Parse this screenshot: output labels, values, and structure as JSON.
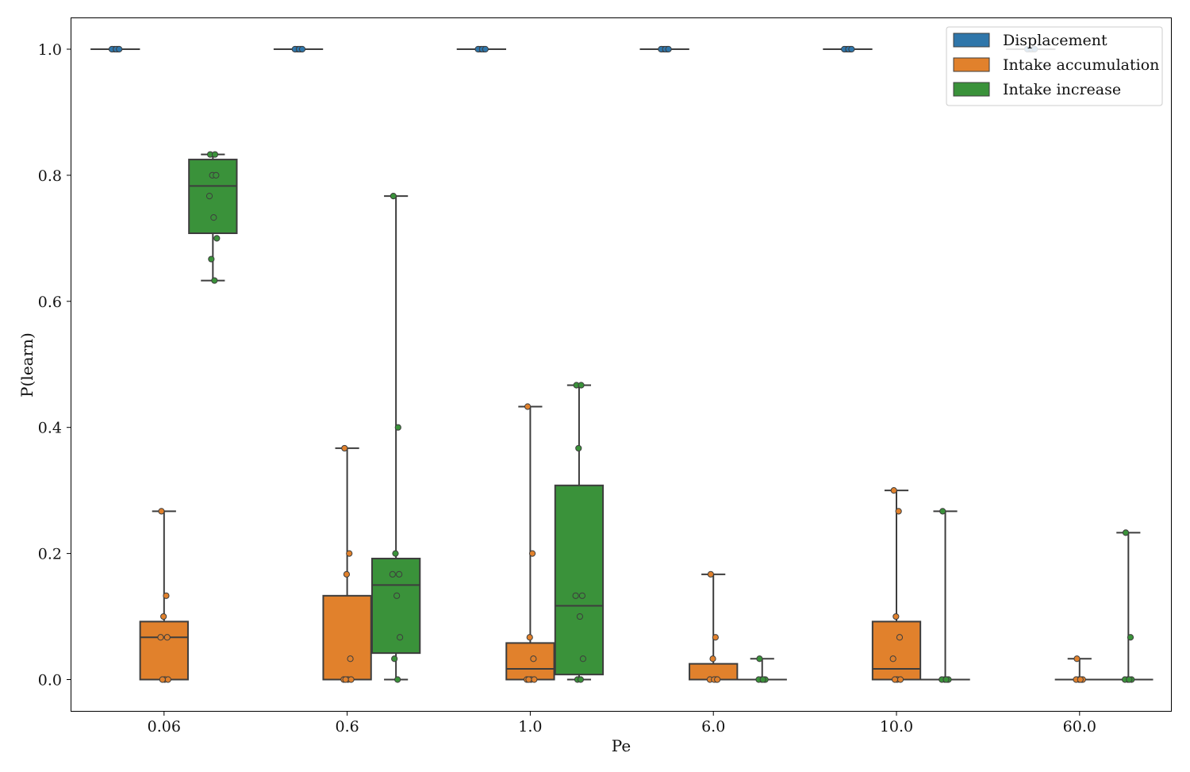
{
  "chart_data": {
    "type": "box",
    "title": "",
    "xlabel": "Pe",
    "ylabel": "P(learn)",
    "ylim": [
      -0.05,
      1.05
    ],
    "yticks": [
      0.0,
      0.2,
      0.4,
      0.6,
      0.8,
      1.0
    ],
    "ytick_labels": [
      "0.0",
      "0.2",
      "0.4",
      "0.6",
      "0.8",
      "1.0"
    ],
    "categories": [
      "0.06",
      "0.6",
      "1.0",
      "6.0",
      "10.0",
      "60.0"
    ],
    "legend_position": "top-right",
    "series": [
      {
        "name": "Displacement",
        "color": "#2f76aa",
        "boxes": [
          {
            "q1": 1.0,
            "median": 1.0,
            "q3": 1.0,
            "whislo": 1.0,
            "whishi": 1.0,
            "points": [
              1.0,
              1.0,
              1.0,
              1.0,
              1.0,
              1.0,
              1.0
            ]
          },
          {
            "q1": 1.0,
            "median": 1.0,
            "q3": 1.0,
            "whislo": 1.0,
            "whishi": 1.0,
            "points": [
              1.0,
              1.0,
              1.0,
              1.0,
              1.0,
              1.0,
              1.0
            ]
          },
          {
            "q1": 1.0,
            "median": 1.0,
            "q3": 1.0,
            "whislo": 1.0,
            "whishi": 1.0,
            "points": [
              1.0,
              1.0,
              1.0,
              1.0,
              1.0,
              1.0,
              1.0
            ]
          },
          {
            "q1": 1.0,
            "median": 1.0,
            "q3": 1.0,
            "whislo": 1.0,
            "whishi": 1.0,
            "points": [
              1.0,
              1.0,
              1.0,
              1.0,
              1.0,
              1.0,
              1.0
            ]
          },
          {
            "q1": 1.0,
            "median": 1.0,
            "q3": 1.0,
            "whislo": 1.0,
            "whishi": 1.0,
            "points": [
              1.0,
              1.0,
              1.0,
              1.0,
              1.0,
              1.0,
              1.0
            ]
          },
          {
            "q1": 1.0,
            "median": 1.0,
            "q3": 1.0,
            "whislo": 1.0,
            "whishi": 1.0,
            "points": [
              1.0,
              1.0,
              1.0,
              1.0,
              1.0,
              1.0,
              1.0
            ]
          }
        ]
      },
      {
        "name": "Intake accumulation",
        "color": "#e1812c",
        "boxes": [
          {
            "q1": 0.0,
            "median": 0.067,
            "q3": 0.092,
            "whislo": 0.0,
            "whishi": 0.267,
            "points": [
              0.267,
              0.133,
              0.1,
              0.067,
              0.067,
              0.0,
              0.0,
              0.0
            ]
          },
          {
            "q1": 0.0,
            "median": 0.0,
            "q3": 0.133,
            "whislo": 0.0,
            "whishi": 0.367,
            "points": [
              0.367,
              0.2,
              0.167,
              0.033,
              0.0,
              0.0,
              0.0,
              0.0
            ]
          },
          {
            "q1": 0.0,
            "median": 0.017,
            "q3": 0.058,
            "whislo": 0.0,
            "whishi": 0.433,
            "points": [
              0.433,
              0.2,
              0.067,
              0.033,
              0.0,
              0.0,
              0.0,
              0.0
            ]
          },
          {
            "q1": 0.0,
            "median": 0.0,
            "q3": 0.025,
            "whislo": 0.0,
            "whishi": 0.167,
            "points": [
              0.167,
              0.067,
              0.033,
              0.0,
              0.0,
              0.0,
              0.0
            ]
          },
          {
            "q1": 0.0,
            "median": 0.017,
            "q3": 0.092,
            "whislo": 0.0,
            "whishi": 0.3,
            "points": [
              0.3,
              0.267,
              0.1,
              0.067,
              0.033,
              0.0,
              0.0,
              0.0
            ]
          },
          {
            "q1": 0.0,
            "median": 0.0,
            "q3": 0.0,
            "whislo": 0.0,
            "whishi": 0.033,
            "points": [
              0.033,
              0.0,
              0.0,
              0.0,
              0.0,
              0.0
            ]
          }
        ]
      },
      {
        "name": "Intake increase",
        "color": "#3a923a",
        "boxes": [
          {
            "q1": 0.708,
            "median": 0.783,
            "q3": 0.825,
            "whislo": 0.633,
            "whishi": 0.833,
            "points": [
              0.833,
              0.833,
              0.8,
              0.8,
              0.767,
              0.733,
              0.7,
              0.667,
              0.633
            ]
          },
          {
            "q1": 0.042,
            "median": 0.15,
            "q3": 0.192,
            "whislo": 0.0,
            "whishi": 0.767,
            "points": [
              0.767,
              0.4,
              0.2,
              0.167,
              0.167,
              0.133,
              0.067,
              0.033,
              0.0
            ]
          },
          {
            "q1": 0.008,
            "median": 0.117,
            "q3": 0.308,
            "whislo": 0.0,
            "whishi": 0.467,
            "points": [
              0.467,
              0.467,
              0.367,
              0.133,
              0.133,
              0.1,
              0.033,
              0.0,
              0.0
            ]
          },
          {
            "q1": 0.0,
            "median": 0.0,
            "q3": 0.0,
            "whislo": 0.0,
            "whishi": 0.033,
            "points": [
              0.033,
              0.0,
              0.0,
              0.0,
              0.0,
              0.0
            ]
          },
          {
            "q1": 0.0,
            "median": 0.0,
            "q3": 0.0,
            "whislo": 0.0,
            "whishi": 0.267,
            "points": [
              0.267,
              0.0,
              0.0,
              0.0,
              0.0,
              0.0
            ]
          },
          {
            "q1": 0.0,
            "median": 0.0,
            "q3": 0.0,
            "whislo": 0.0,
            "whishi": 0.233,
            "points": [
              0.233,
              0.067,
              0.0,
              0.0,
              0.0,
              0.0
            ]
          }
        ]
      }
    ]
  }
}
